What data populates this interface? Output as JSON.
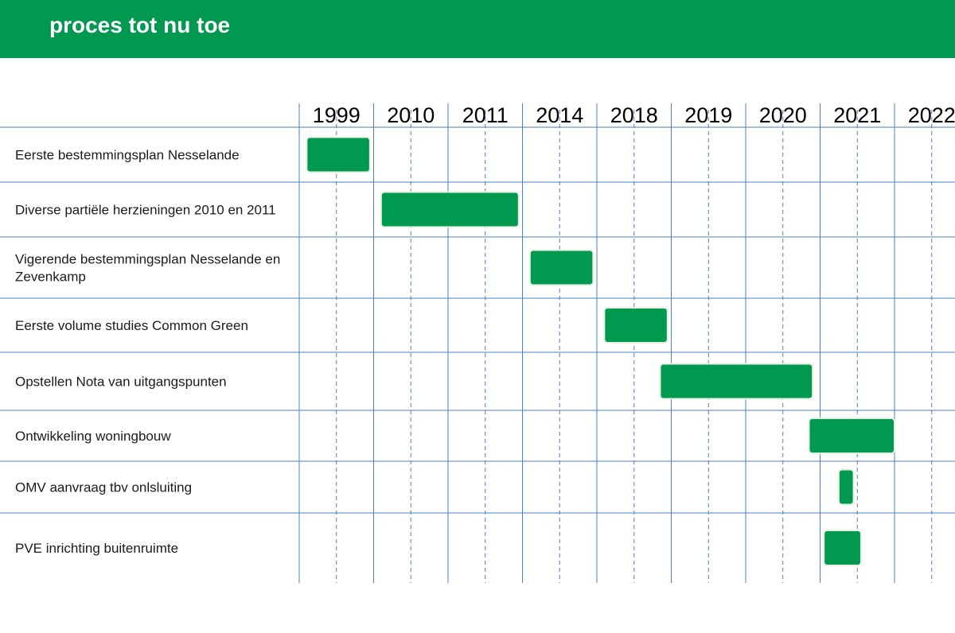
{
  "header": {
    "title": "proces tot nu toe"
  },
  "colors": {
    "header_bg": "#00994f",
    "bar_fill": "#00994f",
    "grid_line": "#4f7fbf"
  },
  "chart_data": {
    "type": "gantt",
    "title": "proces tot nu toe",
    "columns": [
      "1999",
      "2010",
      "2011",
      "2014",
      "2018",
      "2019",
      "2020",
      "2021",
      "2022"
    ],
    "tasks": [
      {
        "label": "Eerste bestemmingsplan Nesselande",
        "start": 0.1,
        "end": 0.95
      },
      {
        "label": "Diverse partiële herzieningen 2010 en 2011",
        "start": 1.1,
        "end": 2.95
      },
      {
        "label": "Vigerende bestemmingsplan Nesselande en Zevenkamp",
        "start": 3.1,
        "end": 3.95
      },
      {
        "label": "Eerste volume studies Common Green",
        "start": 4.1,
        "end": 4.95
      },
      {
        "label": "Opstellen Nota van uitgangspunten",
        "start": 4.85,
        "end": 6.9
      },
      {
        "label": "Ontwikkeling woningbouw",
        "start": 6.85,
        "end": 8.0
      },
      {
        "label": "OMV aanvraag tbv onlsluiting",
        "start": 7.25,
        "end": 7.45
      },
      {
        "label": "PVE inrichting buitenruimte",
        "start": 7.05,
        "end": 7.55
      }
    ],
    "grid": true,
    "subdivisions_per_column": 2
  }
}
